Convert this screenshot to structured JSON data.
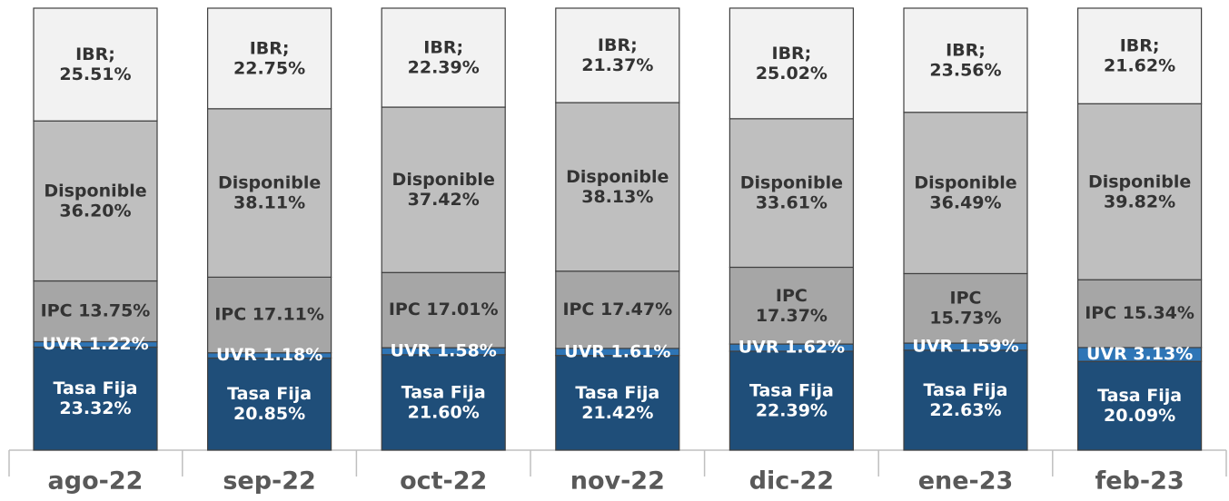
{
  "chart_data": {
    "type": "stacked-bar",
    "categories": [
      "ago-22",
      "sep-22",
      "oct-22",
      "nov-22",
      "dic-22",
      "ene-23",
      "feb-23"
    ],
    "ylim": [
      0,
      100
    ],
    "series": [
      {
        "color": "#1f4e79",
        "values": [
          23.32,
          20.85,
          21.6,
          21.42,
          22.39,
          22.63,
          20.09
        ],
        "value_labels": [
          "Tasa Fija\n23.32%",
          "Tasa Fija\n20.85%",
          "Tasa Fija\n21.60%",
          "Tasa Fija\n21.42%",
          "Tasa Fija\n22.39%",
          "Tasa Fija\n22.63%",
          "Tasa Fija\n20.09%"
        ]
      },
      {
        "color": "#2e75b6",
        "values": [
          1.22,
          1.18,
          1.58,
          1.61,
          1.62,
          1.59,
          3.13
        ],
        "value_labels": [
          "UVR 1.22%",
          "UVR 1.18%",
          "UVR 1.58%",
          "UVR 1.61%",
          "UVR 1.62%",
          "UVR 1.59%",
          "UVR 3.13%"
        ]
      },
      {
        "color": "#a6a6a6",
        "values": [
          13.75,
          17.11,
          17.01,
          17.47,
          17.37,
          15.73,
          15.34
        ],
        "value_labels": [
          "IPC 13.75%",
          "IPC 17.11%",
          "IPC 17.01%",
          "IPC 17.47%",
          "IPC\n17.37%",
          "IPC\n15.73%",
          "IPC 15.34%"
        ]
      },
      {
        "color": "#bfbfbf",
        "values": [
          36.2,
          38.11,
          37.42,
          38.13,
          33.61,
          36.49,
          39.82
        ],
        "value_labels": [
          "Disponible\n36.20%",
          "Disponible\n38.11%",
          "Disponible\n37.42%",
          "Disponible\n38.13%",
          "Disponible\n33.61%",
          "Disponible\n36.49%",
          "Disponible\n39.82%"
        ]
      },
      {
        "color": "#f2f2f2",
        "values": [
          25.51,
          22.75,
          22.39,
          21.37,
          25.02,
          23.56,
          21.62
        ],
        "value_labels": [
          "IBR;\n25.51%",
          "IBR;\n22.75%",
          "IBR;\n22.39%",
          "IBR;\n21.37%",
          "IBR;\n25.02%",
          "IBR;\n23.56%",
          "IBR;\n21.62%"
        ]
      }
    ]
  }
}
